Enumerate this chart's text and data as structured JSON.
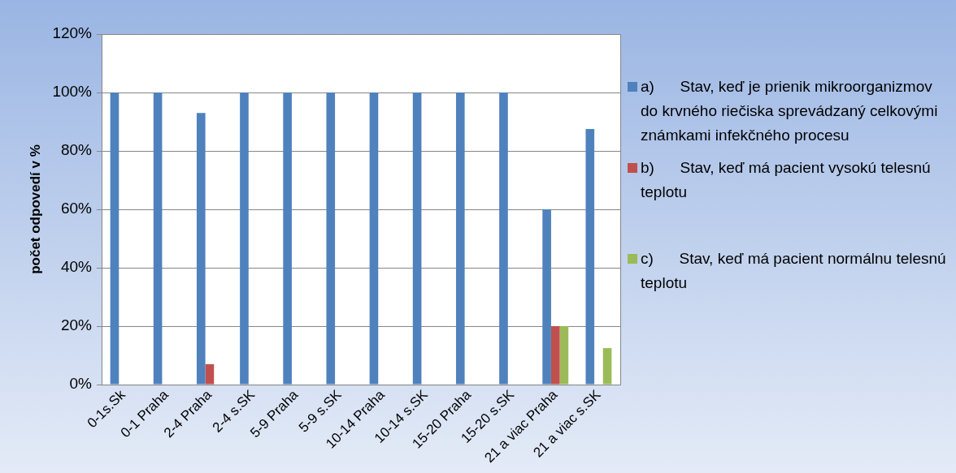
{
  "chart_data": {
    "type": "bar",
    "ylabel": "počet odpovedí v %",
    "categories": [
      "0-1s.Sk",
      "0-1 Praha",
      "2-4 Praha",
      "2-4 s.SK",
      "5-9 Praha",
      "5-9 s.SK",
      "10-14 Praha",
      "10-14 s.SK",
      "15-20 Praha",
      "15-20 s.SK",
      "21 a viac Praha",
      "21 a viac s.SK"
    ],
    "series": [
      {
        "name": "a)      Stav, keď je prienik mikroorganizmov do krvného riečiska sprevádzaný celkovými známkami infekčného procesu",
        "color": "#4f81bd",
        "values": [
          100,
          100,
          93,
          100,
          100,
          100,
          100,
          100,
          100,
          100,
          60,
          87.5
        ]
      },
      {
        "name": "b)      Stav, keď má pacient vysokú telesnú teplotu",
        "color": "#c0504d",
        "values": [
          0,
          0,
          7,
          0,
          0,
          0,
          0,
          0,
          0,
          0,
          20,
          0
        ]
      },
      {
        "name": "c)      Stav, keď má pacient normálnu telesnú teplotu",
        "color": "#9bbb59",
        "values": [
          0,
          0,
          0,
          0,
          0,
          0,
          0,
          0,
          0,
          0,
          20,
          12.5
        ]
      }
    ],
    "ylim": [
      0,
      120
    ],
    "yticks": [
      {
        "value": 0,
        "label": "0%"
      },
      {
        "value": 20,
        "label": "20%"
      },
      {
        "value": 40,
        "label": "40%"
      },
      {
        "value": 60,
        "label": "60%"
      },
      {
        "value": 80,
        "label": "80%"
      },
      {
        "value": 100,
        "label": "100%"
      },
      {
        "value": 120,
        "label": "120%"
      }
    ],
    "grid": "y",
    "legend": "right"
  }
}
